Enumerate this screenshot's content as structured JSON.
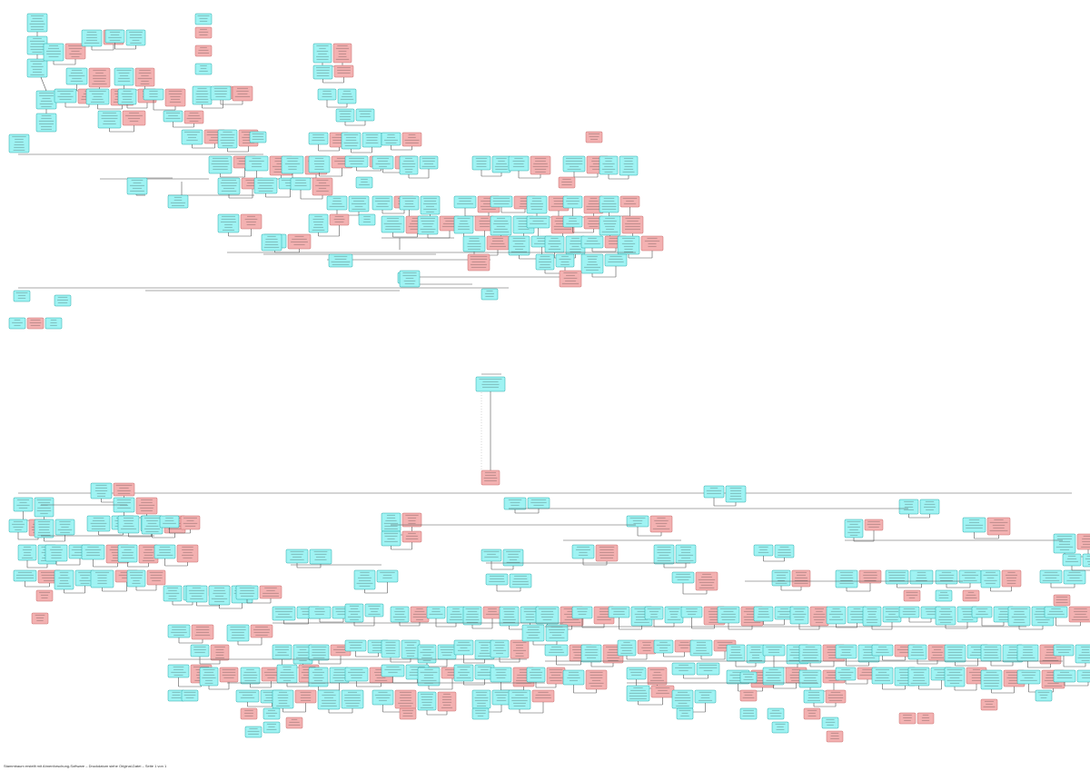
{
  "diagram": {
    "type": "family-tree",
    "colors": {
      "male_fill": "#9ff3f3",
      "male_stroke": "#28a9a9",
      "female_fill": "#f3b1b1",
      "female_stroke": "#c96a6a",
      "connector": "#555555",
      "text": "#1a1a1a"
    },
    "legend": {
      "male": "cyan box",
      "female": "rose box"
    }
  },
  "footer": {
    "text": "Stammbaum erstellt mit Ahnenforschung-Software – Druckdatum siehe Original-Datei – Seite 1 von 1"
  }
}
